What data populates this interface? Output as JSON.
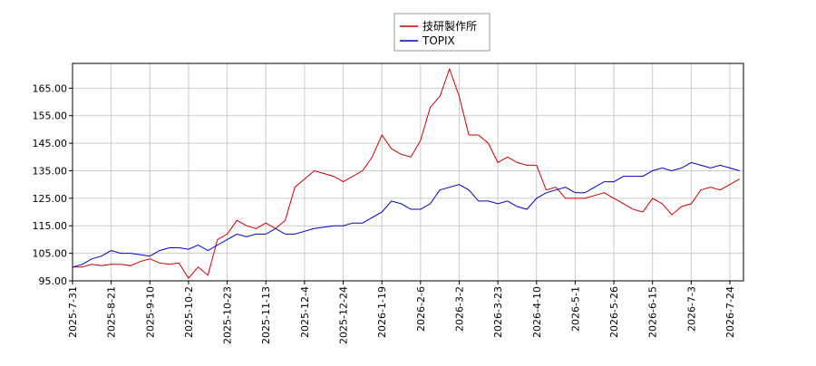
{
  "chart_data": {
    "type": "line",
    "categories": [
      "2025-7-31",
      null,
      null,
      null,
      "2025-8-21",
      null,
      null,
      null,
      "2025-9-10",
      null,
      null,
      null,
      "2025-10-2",
      null,
      null,
      null,
      "2025-10-23",
      null,
      null,
      null,
      "2025-11-13",
      null,
      null,
      null,
      "2025-12-4",
      null,
      null,
      null,
      "2025-12-24",
      null,
      null,
      null,
      "2026-1-19",
      null,
      null,
      null,
      "2026-2-6",
      null,
      null,
      null,
      "2026-3-2",
      null,
      null,
      null,
      "2026-3-23",
      null,
      null,
      null,
      "2026-4-10",
      null,
      null,
      null,
      "2026-5-1",
      null,
      null,
      null,
      "2026-5-26",
      null,
      null,
      null,
      "2026-6-15",
      null,
      null,
      null,
      "2026-7-3",
      null,
      null,
      null,
      "2026-7-24",
      null
    ],
    "series": [
      {
        "name": "技研製作所",
        "color": "#cc0000",
        "values": [
          100,
          100,
          101,
          100.5,
          101,
          101,
          100.5,
          102,
          103,
          101.5,
          101,
          101.5,
          96,
          100,
          97,
          110,
          112,
          117,
          115,
          114,
          116,
          114,
          117,
          129,
          132,
          135,
          134,
          133,
          131,
          133,
          135,
          140,
          148,
          143,
          141,
          140,
          146,
          158,
          162,
          172,
          162,
          148,
          148,
          145,
          138,
          140,
          138,
          137,
          137,
          128,
          129,
          125,
          125,
          125,
          126,
          127,
          125,
          123,
          121,
          120,
          125,
          123,
          119,
          122,
          123,
          128,
          129,
          128,
          130,
          132
        ]
      },
      {
        "name": "TOPIX",
        "color": "#0000cc",
        "values": [
          100,
          101,
          103,
          104,
          106,
          105,
          105,
          104.5,
          104,
          106,
          107,
          107,
          106.5,
          108,
          106,
          108,
          110,
          112,
          111,
          112,
          112,
          114,
          112,
          112,
          113,
          114,
          114.5,
          115,
          115,
          116,
          116,
          118,
          120,
          124,
          123,
          121,
          121,
          123,
          128,
          129,
          130,
          128,
          124,
          124,
          123,
          124,
          122,
          121,
          125,
          127,
          128,
          129,
          127,
          127,
          129,
          131,
          131,
          133,
          133,
          133,
          135,
          136,
          135,
          136,
          138,
          137,
          136,
          137,
          136,
          135
        ]
      }
    ],
    "ylim": [
      95,
      174
    ],
    "yticks": [
      {
        "value": 95,
        "label": "95.00"
      },
      {
        "value": 105,
        "label": "105.00"
      },
      {
        "value": 115,
        "label": "115.00"
      },
      {
        "value": 125,
        "label": "125.00"
      },
      {
        "value": 135,
        "label": "135.00"
      },
      {
        "value": 145,
        "label": "145.00"
      },
      {
        "value": 155,
        "label": "155.00"
      },
      {
        "value": 165,
        "label": "165.00"
      }
    ],
    "grid": true
  }
}
